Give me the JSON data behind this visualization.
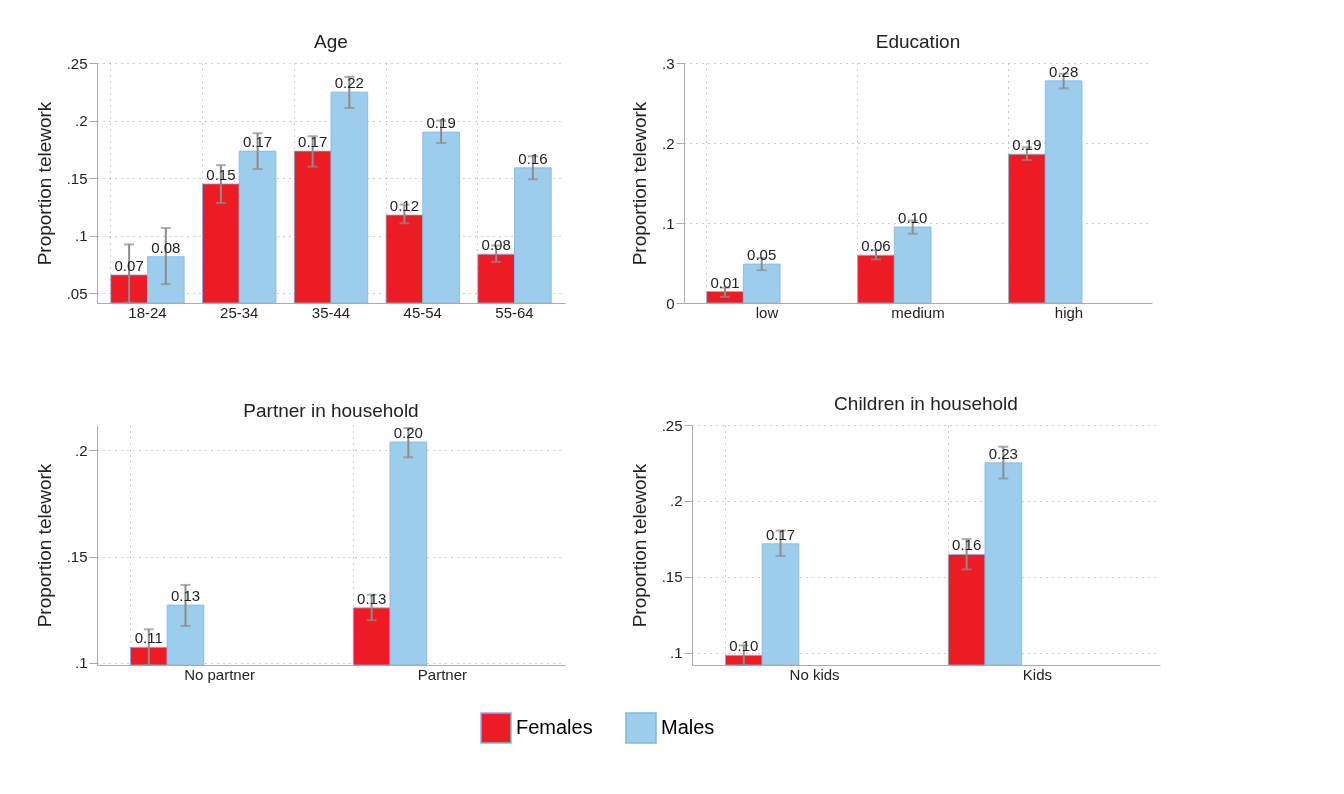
{
  "chart_data": [
    {
      "type": "bar",
      "title": "Age",
      "ylabel": "Proportion telework",
      "categories": [
        "18-24",
        "25-34",
        "35-44",
        "45-54",
        "55-64"
      ],
      "ylim": [
        0.0416,
        0.25
      ],
      "yticks": [
        {
          "value": 0.05,
          "label": ".05"
        },
        {
          "value": 0.1,
          "label": ".1"
        },
        {
          "value": 0.15,
          "label": ".15"
        },
        {
          "value": 0.2,
          "label": ".2"
        },
        {
          "value": 0.25,
          "label": ".25"
        }
      ],
      "grid": true,
      "legend": "bottom",
      "series": [
        {
          "name": "Females",
          "color": "#ed1c24",
          "values": [
            0.066,
            0.145,
            0.1735,
            0.118,
            0.084
          ],
          "errors": [
            [
              0.042,
              0.0925
            ],
            [
              0.1285,
              0.1613
            ],
            [
              0.16,
              0.1864
            ],
            [
              0.1108,
              0.127
            ],
            [
              0.0773,
              0.0915
            ]
          ],
          "value_labels": [
            "0.07",
            "0.15",
            "0.17",
            "0.12",
            "0.08"
          ]
        },
        {
          "name": "Males",
          "color": "#9dcdec",
          "values": [
            0.0818,
            0.1735,
            0.2247,
            0.19,
            0.159
          ],
          "errors": [
            [
              0.058,
              0.1067
            ],
            [
              0.158,
              0.189
            ],
            [
              0.211,
              0.238
            ],
            [
              0.1805,
              0.2
            ],
            [
              0.149,
              0.169
            ]
          ],
          "value_labels": [
            "0.08",
            "0.17",
            "0.22",
            "0.19",
            "0.16"
          ]
        }
      ]
    },
    {
      "type": "bar",
      "title": "Education",
      "ylabel": "Proportion telework",
      "categories": [
        "low",
        "medium",
        "high"
      ],
      "ylim": [
        0,
        0.3
      ],
      "yticks": [
        0,
        {
          "value": 0.1,
          "label": ".1"
        },
        {
          "value": 0.2,
          "label": ".2"
        },
        {
          "value": 0.3,
          "label": ".3"
        }
      ],
      "grid": true,
      "series": [
        {
          "name": "Females",
          "color": "#ed1c24",
          "values": [
            0.0143,
            0.0598,
            0.186
          ],
          "errors": [
            [
              0.0076,
              0.0192
            ],
            [
              0.0545,
              0.066
            ],
            [
              0.1786,
              0.1946
            ]
          ],
          "value_labels": [
            "0.01",
            "0.06",
            "0.19"
          ]
        },
        {
          "name": "Males",
          "color": "#9dcdec",
          "values": [
            0.0487,
            0.095,
            0.2777
          ],
          "errors": [
            [
              0.0411,
              0.0562
            ],
            [
              0.0866,
              0.1031
            ],
            [
              0.2683,
              0.2866
            ]
          ],
          "value_labels": [
            "0.05",
            "0.10",
            "0.28"
          ]
        }
      ]
    },
    {
      "type": "bar",
      "title": "Partner in household",
      "ylabel": "Proportion telework",
      "categories": [
        "No partner",
        "Partner"
      ],
      "ylim": [
        0.099,
        0.212
      ],
      "yticks": [
        {
          "value": 0.1,
          "label": ".1"
        },
        {
          "value": 0.15,
          "label": ".15"
        },
        {
          "value": 0.2,
          "label": ".2"
        }
      ],
      "grid": true,
      "series": [
        {
          "name": "Females",
          "color": "#ed1c24",
          "values": [
            0.1073,
            0.1259
          ],
          "errors": [
            [
              0.099,
              0.1158
            ],
            [
              0.1201,
              0.1321
            ]
          ],
          "value_labels": [
            "0.11",
            "0.13"
          ]
        },
        {
          "name": "Males",
          "color": "#9dcdec",
          "values": [
            0.1272,
            0.204
          ],
          "errors": [
            [
              0.1174,
              0.1367
            ],
            [
              0.1968,
              0.2106
            ]
          ],
          "value_labels": [
            "0.13",
            "0.20"
          ]
        }
      ]
    },
    {
      "type": "bar",
      "title": "Children in household",
      "ylabel": "Proportion telework",
      "categories": [
        "No kids",
        "Kids"
      ],
      "ylim": [
        0.092,
        0.25
      ],
      "yticks": [
        {
          "value": 0.1,
          "label": ".1"
        },
        {
          "value": 0.15,
          "label": ".15"
        },
        {
          "value": 0.2,
          "label": ".2"
        },
        {
          "value": 0.25,
          "label": ".25"
        }
      ],
      "grid": true,
      "series": [
        {
          "name": "Females",
          "color": "#ed1c24",
          "values": [
            0.0984,
            0.1648
          ],
          "errors": [
            [
              0.092,
              0.1049
            ],
            [
              0.1549,
              0.1749
            ]
          ],
          "value_labels": [
            "0.10",
            "0.16"
          ]
        },
        {
          "name": "Males",
          "color": "#9dcdec",
          "values": [
            0.1718,
            0.2251
          ],
          "errors": [
            [
              0.1638,
              0.1805
            ],
            [
              0.2148,
              0.2357
            ]
          ],
          "value_labels": [
            "0.17",
            "0.23"
          ]
        }
      ]
    }
  ]
}
